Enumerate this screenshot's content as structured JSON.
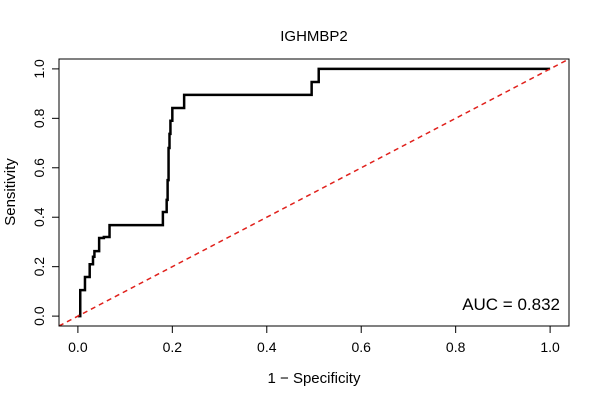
{
  "chart_data": {
    "type": "line",
    "title": "IGHMBP2",
    "xlabel": "1 − Specificity",
    "ylabel": "Sensitivity",
    "xlim": [
      -0.04,
      1.04
    ],
    "ylim": [
      -0.04,
      1.04
    ],
    "x_ticks": [
      0.0,
      0.2,
      0.4,
      0.6,
      0.8,
      1.0
    ],
    "x_tick_labels": [
      "0.0",
      "0.2",
      "0.4",
      "0.6",
      "0.8",
      "1.0"
    ],
    "y_ticks": [
      0.0,
      0.2,
      0.4,
      0.6,
      0.8,
      1.0
    ],
    "y_tick_labels": [
      "0.0",
      "0.2",
      "0.4",
      "0.6",
      "0.8",
      "1.0"
    ],
    "grid": false,
    "annotation": "AUC = 0.832",
    "colors": {
      "roc": "#000000",
      "reference": "#e0201b"
    },
    "series": [
      {
        "style": "solid",
        "x": [
          0.0,
          0.005,
          0.005,
          0.015,
          0.015,
          0.025,
          0.025,
          0.032,
          0.032,
          0.035,
          0.035,
          0.045,
          0.045,
          0.055,
          0.055,
          0.067,
          0.067,
          0.18,
          0.18,
          0.188,
          0.188,
          0.19,
          0.19,
          0.192,
          0.192,
          0.194,
          0.194,
          0.196,
          0.196,
          0.2,
          0.2,
          0.225,
          0.225,
          0.495,
          0.495,
          0.51,
          0.51,
          1.0
        ],
        "y": [
          0.0,
          0.0,
          0.105,
          0.105,
          0.158,
          0.158,
          0.21,
          0.21,
          0.24,
          0.24,
          0.263,
          0.263,
          0.316,
          0.316,
          0.32,
          0.32,
          0.368,
          0.368,
          0.421,
          0.421,
          0.47,
          0.47,
          0.55,
          0.55,
          0.68,
          0.68,
          0.737,
          0.737,
          0.79,
          0.79,
          0.842,
          0.842,
          0.895,
          0.895,
          0.947,
          0.947,
          1.0,
          1.0
        ]
      },
      {
        "style": "dashed",
        "x": [
          -0.04,
          1.04
        ],
        "y": [
          -0.04,
          1.04
        ]
      }
    ]
  }
}
